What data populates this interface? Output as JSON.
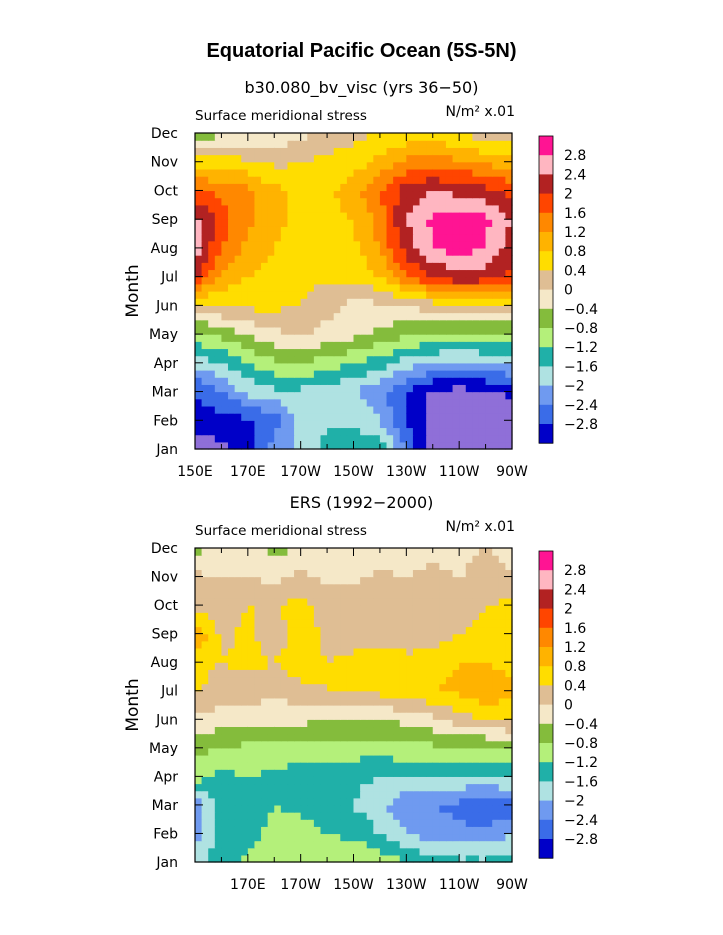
{
  "figure": {
    "title": "Equatorial Pacific Ocean (5S-5N)",
    "colors": {
      "levels": [
        "#8F6FD8",
        "#0000C8",
        "#3A6CE8",
        "#6F9AF0",
        "#AFE2E2",
        "#20B0A8",
        "#B4F07A",
        "#84BC3C",
        "#F5E8C8",
        "#DFBE94",
        "#FFDD00",
        "#FFB300",
        "#FF8800",
        "#FF4500",
        "#B22222",
        "#FFB6C1",
        "#FF1493"
      ]
    }
  },
  "panels": [
    {
      "title": "b30.080_bv_visc (yrs 36−50)",
      "left_label": "Surface meridional stress",
      "units_label": "N/m² x.01",
      "ylabel": "Month"
    },
    {
      "title": "ERS (1992−2000)",
      "left_label": "Surface meridional stress",
      "units_label": "N/m² x.01",
      "ylabel": "Month"
    }
  ],
  "chart_data": [
    {
      "type": "heatmap",
      "title": "b30.080_bv_visc (yrs 36−50)",
      "subtitle": "Surface meridional stress",
      "units": "N/m² x.01",
      "ylabel": "Month",
      "xlabel": "",
      "x_ticks": [
        "150E",
        "170E",
        "170W",
        "150W",
        "130W",
        "110W",
        "90W"
      ],
      "y_ticks": [
        "Jan",
        "Feb",
        "Mar",
        "Apr",
        "May",
        "Jun",
        "Jul",
        "Aug",
        "Sep",
        "Oct",
        "Nov",
        "Dec"
      ],
      "x": [
        150,
        160,
        170,
        180,
        190,
        200,
        210,
        220,
        230,
        240,
        250,
        260,
        270
      ],
      "x_note": "degrees east (150E to 90W)",
      "y": [
        "Jan",
        "Feb",
        "Mar",
        "Apr",
        "May",
        "Jun",
        "Jul",
        "Aug",
        "Sep",
        "Oct",
        "Nov",
        "Dec"
      ],
      "colorbar_labels": [
        "2.8",
        "2.4",
        "2",
        "1.6",
        "1.2",
        "0.8",
        "0.4",
        "0",
        "−0.4",
        "−0.8",
        "−1.2",
        "−1.6",
        "−2",
        "−2.4",
        "−2.8"
      ],
      "z": [
        [
          -3.0,
          -2.9,
          -2.5,
          -1.8,
          -1.5,
          -1.0,
          -0.8,
          -1.0,
          -2.0,
          -3.0,
          -3.2,
          -3.2,
          -3.2
        ],
        [
          -2.6,
          -2.6,
          -2.5,
          -2.2,
          -1.5,
          -1.3,
          -1.3,
          -1.6,
          -2.5,
          -3.0,
          -3.2,
          -3.1,
          -3.0
        ],
        [
          -2.4,
          -2.0,
          -1.5,
          -1.3,
          -1.3,
          -1.4,
          -1.6,
          -1.9,
          -2.4,
          -2.9,
          -3.0,
          -2.9,
          -2.7
        ],
        [
          -1.5,
          -1.2,
          -0.8,
          -0.5,
          -0.4,
          -0.6,
          -0.8,
          -1.0,
          -1.4,
          -1.6,
          -1.7,
          -1.6,
          -1.5
        ],
        [
          -0.5,
          -0.3,
          0.0,
          0.3,
          0.4,
          0.3,
          0.1,
          -0.1,
          -0.3,
          -0.5,
          -0.5,
          -0.5,
          -0.5
        ],
        [
          0.6,
          0.8,
          0.9,
          0.9,
          0.8,
          0.5,
          0.3,
          0.3,
          0.4,
          0.6,
          0.7,
          0.8,
          0.7
        ],
        [
          2.5,
          1.5,
          1.2,
          1.0,
          0.9,
          0.9,
          0.9,
          1.2,
          1.9,
          2.4,
          2.7,
          2.6,
          2.3
        ],
        [
          3.0,
          2.0,
          1.5,
          1.2,
          1.0,
          1.0,
          1.1,
          1.6,
          2.6,
          3.2,
          3.4,
          3.2,
          2.6
        ],
        [
          3.0,
          2.2,
          1.7,
          1.3,
          1.1,
          1.1,
          1.2,
          1.8,
          2.8,
          3.3,
          3.4,
          3.3,
          2.8
        ],
        [
          2.0,
          1.9,
          1.7,
          1.3,
          1.1,
          1.1,
          1.4,
          2.0,
          2.6,
          2.8,
          2.7,
          2.5,
          2.3
        ],
        [
          1.0,
          1.0,
          0.9,
          0.7,
          0.8,
          0.9,
          1.0,
          1.3,
          1.7,
          1.8,
          1.7,
          1.5,
          1.4
        ],
        [
          -0.4,
          -0.1,
          0.0,
          0.1,
          0.3,
          0.5,
          0.7,
          0.8,
          0.9,
          0.9,
          0.8,
          0.6,
          0.5
        ]
      ]
    },
    {
      "type": "heatmap",
      "title": "ERS (1992−2000)",
      "subtitle": "Surface meridional stress",
      "units": "N/m² x.01",
      "ylabel": "Month",
      "xlabel": "",
      "x_ticks": [
        "170E",
        "170W",
        "150W",
        "130W",
        "110W",
        "90W"
      ],
      "y_ticks": [
        "Jan",
        "Feb",
        "Mar",
        "Apr",
        "May",
        "Jun",
        "Jul",
        "Aug",
        "Sep",
        "Oct",
        "Nov",
        "Dec"
      ],
      "x": [
        150,
        160,
        170,
        180,
        190,
        200,
        210,
        220,
        230,
        240,
        250,
        260,
        270
      ],
      "x_note": "degrees east (150E to 90W)",
      "y": [
        "Jan",
        "Feb",
        "Mar",
        "Apr",
        "May",
        "Jun",
        "Jul",
        "Aug",
        "Sep",
        "Oct",
        "Nov",
        "Dec"
      ],
      "colorbar_labels": [
        "2.8",
        "2.4",
        "2",
        "1.6",
        "1.2",
        "0.8",
        "0.4",
        "0",
        "−0.4",
        "−0.8",
        "−1.2",
        "−1.6",
        "−2",
        "−2.4",
        "−2.8"
      ],
      "z": [
        [
          -1.4,
          -0.9,
          -0.7,
          -0.5,
          -0.4,
          -0.4,
          -0.4,
          -0.5,
          -0.8,
          -1.0,
          -1.1,
          -1.1,
          -1.0
        ],
        [
          -1.8,
          -1.0,
          -1.0,
          -0.6,
          -0.6,
          -0.8,
          -0.9,
          -1.2,
          -1.6,
          -1.8,
          -1.9,
          -1.9,
          -1.6
        ],
        [
          -1.9,
          -1.1,
          -1.2,
          -0.8,
          -0.9,
          -1.0,
          -1.2,
          -1.5,
          -1.9,
          -2.0,
          -2.1,
          -2.4,
          -2.2
        ],
        [
          -0.6,
          -0.9,
          -0.8,
          -0.9,
          -1.0,
          -1.0,
          -1.1,
          -1.2,
          -1.2,
          -1.3,
          -1.2,
          -1.3,
          -1.1
        ],
        [
          -0.3,
          -0.4,
          -0.5,
          -0.5,
          -0.6,
          -0.6,
          -0.6,
          -0.6,
          -0.5,
          -0.5,
          -0.5,
          -0.5,
          -0.3
        ],
        [
          0.3,
          0.2,
          0.2,
          0.1,
          0.1,
          0.0,
          0.0,
          0.0,
          0.1,
          0.3,
          0.6,
          0.8,
          0.9
        ],
        [
          0.9,
          0.6,
          0.6,
          0.5,
          0.7,
          0.8,
          0.9,
          0.9,
          1.0,
          1.2,
          1.3,
          1.5,
          1.3
        ],
        [
          0.9,
          0.8,
          0.9,
          0.8,
          1.0,
          0.8,
          0.9,
          1.1,
          0.9,
          1.0,
          1.2,
          1.2,
          1.1
        ],
        [
          1.6,
          0.7,
          0.9,
          0.6,
          1.0,
          0.7,
          0.6,
          0.6,
          0.6,
          0.6,
          0.8,
          0.9,
          1.0
        ],
        [
          0.7,
          0.6,
          0.8,
          0.8,
          0.9,
          0.7,
          0.6,
          0.7,
          0.6,
          0.7,
          0.6,
          0.8,
          0.9
        ],
        [
          0.5,
          0.4,
          0.4,
          0.3,
          0.5,
          0.3,
          0.3,
          0.5,
          0.4,
          0.6,
          0.4,
          0.6,
          0.4
        ],
        [
          -0.1,
          0.0,
          0.1,
          -0.1,
          0.0,
          0.1,
          0.1,
          0.0,
          0.2,
          0.1,
          0.2,
          0.4,
          0.3
        ]
      ]
    }
  ]
}
